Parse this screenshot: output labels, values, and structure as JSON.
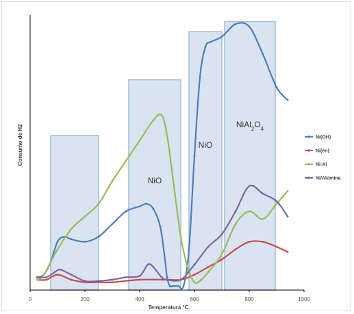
{
  "chart_data": {
    "type": "line",
    "xlabel": "Temperatura °C",
    "ylabel": "Consumo de H2",
    "xlim": [
      0,
      1000
    ],
    "ylim": [
      0,
      100
    ],
    "x_ticks": [
      "0",
      "200",
      "400",
      "600",
      "800",
      "1000"
    ],
    "grid": false,
    "legend_position": "right",
    "regions": [
      {
        "x0": 75,
        "x1": 250,
        "y_top": 60,
        "label": ""
      },
      {
        "x0": 360,
        "x1": 550,
        "y_top": 82,
        "label": "NiO"
      },
      {
        "x0": 580,
        "x1": 700,
        "y_top": 101,
        "label": "NiO"
      },
      {
        "x0": 710,
        "x1": 895,
        "y_top": 105,
        "label_parts": [
          "NiAl",
          "2",
          "O",
          "4"
        ]
      }
    ],
    "series": [
      {
        "name": "Ni(OH)",
        "color": "#4a7ebb",
        "x": [
          25,
          50,
          75,
          100,
          125,
          150,
          200,
          250,
          300,
          350,
          400,
          425,
          450,
          475,
          490,
          500,
          510,
          520,
          540,
          560,
          580,
          600,
          620,
          640,
          660,
          700,
          750,
          800,
          850,
          900,
          940
        ],
        "y": [
          4,
          5,
          10,
          18,
          20,
          19,
          18,
          20,
          25,
          30,
          32,
          33,
          31,
          24,
          13,
          4,
          0.5,
          0.5,
          0.5,
          0.5,
          15,
          52,
          83,
          95,
          97,
          99,
          104,
          103,
          92,
          79,
          74
        ]
      },
      {
        "name": "Ni(en)",
        "color": "#c0504d",
        "x": [
          25,
          60,
          100,
          150,
          200,
          250,
          300,
          400,
          500,
          550,
          600,
          650,
          700,
          750,
          800,
          850,
          900,
          940
        ],
        "y": [
          3,
          3,
          5,
          3,
          2,
          2,
          2,
          3,
          3,
          3,
          5,
          8,
          11,
          15,
          18,
          18,
          16,
          14
        ]
      },
      {
        "name": "Ni:Al",
        "color": "#9bbb59",
        "x": [
          25,
          50,
          100,
          150,
          200,
          250,
          300,
          350,
          400,
          450,
          480,
          500,
          525,
          550,
          575,
          600,
          625,
          650,
          700,
          750,
          800,
          850,
          900,
          940
        ],
        "y": [
          3,
          5,
          15,
          23,
          28,
          33,
          42,
          50,
          58,
          66,
          68,
          60,
          40,
          20,
          8,
          2,
          3,
          6,
          13,
          25,
          30,
          27,
          33,
          38
        ]
      },
      {
        "name": "Ni/Alúmina",
        "color": "#8064a2",
        "x": [
          25,
          60,
          90,
          110,
          150,
          200,
          250,
          300,
          350,
          400,
          430,
          450,
          480,
          500,
          550,
          600,
          650,
          700,
          750,
          800,
          850,
          900,
          940
        ],
        "y": [
          4,
          4,
          6,
          7,
          5,
          2.5,
          2.5,
          3,
          4,
          4.5,
          9,
          8,
          4,
          3,
          3,
          9,
          16,
          21,
          30,
          40,
          37,
          34,
          28
        ]
      }
    ]
  }
}
